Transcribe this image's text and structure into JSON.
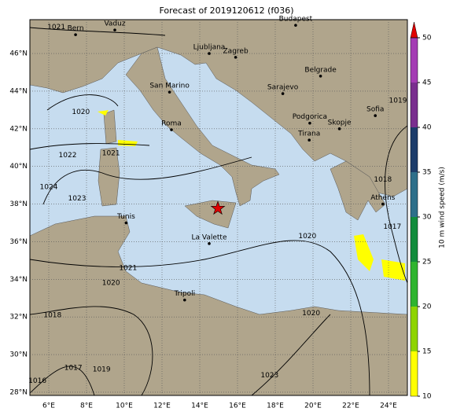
{
  "title": "Forecast of 2019120612 (f036)",
  "map": {
    "lonlim": [
      5,
      25
    ],
    "latlim": [
      27.83,
      47.8
    ],
    "lonticks": [
      {
        "value": 6,
        "label": "6°E"
      },
      {
        "value": 8,
        "label": "8°E"
      },
      {
        "value": 10,
        "label": "10°E"
      },
      {
        "value": 12,
        "label": "12°E"
      },
      {
        "value": 14,
        "label": "14°E"
      },
      {
        "value": 16,
        "label": "16°E"
      },
      {
        "value": 18,
        "label": "18°E"
      },
      {
        "value": 20,
        "label": "20°E"
      },
      {
        "value": 22,
        "label": "22°E"
      },
      {
        "value": 24,
        "label": "24°E"
      }
    ],
    "latticks": [
      {
        "value": 28,
        "label": "28°N"
      },
      {
        "value": 30,
        "label": "30°N"
      },
      {
        "value": 32,
        "label": "32°N"
      },
      {
        "value": 34,
        "label": "34°N"
      },
      {
        "value": 36,
        "label": "36°N"
      },
      {
        "value": 38,
        "label": "38°N"
      },
      {
        "value": 40,
        "label": "40°N"
      },
      {
        "value": 42,
        "label": "42°N"
      },
      {
        "value": 44,
        "label": "44°N"
      },
      {
        "value": 46,
        "label": "46°N"
      }
    ],
    "grid": true,
    "cities": [
      {
        "name": "Bern",
        "lon": 7.42,
        "lat": 47.0
      },
      {
        "name": "Vaduz",
        "lon": 9.5,
        "lat": 47.25
      },
      {
        "name": "Budapest",
        "lon": 19.08,
        "lat": 47.5
      },
      {
        "name": "Ljubljana",
        "lon": 14.5,
        "lat": 46.0
      },
      {
        "name": "Zagreb",
        "lon": 15.9,
        "lat": 45.8
      },
      {
        "name": "Belgrade",
        "lon": 20.4,
        "lat": 44.8
      },
      {
        "name": "San Marino",
        "lon": 12.4,
        "lat": 43.95
      },
      {
        "name": "Sarajevo",
        "lon": 18.4,
        "lat": 43.87
      },
      {
        "name": "Podgorica",
        "lon": 19.83,
        "lat": 42.3
      },
      {
        "name": "Sofia",
        "lon": 23.3,
        "lat": 42.7
      },
      {
        "name": "Skopje",
        "lon": 21.4,
        "lat": 42.0
      },
      {
        "name": "Tirana",
        "lon": 19.8,
        "lat": 41.4
      },
      {
        "name": "Roma",
        "lon": 12.5,
        "lat": 41.95
      },
      {
        "name": "Tunis",
        "lon": 10.1,
        "lat": 37.0
      },
      {
        "name": "Athens",
        "lon": 23.7,
        "lat": 38.0
      },
      {
        "name": "La Valette",
        "lon": 14.5,
        "lat": 35.9
      },
      {
        "name": "Tripoli",
        "lon": 13.2,
        "lat": 32.9
      }
    ],
    "marker": {
      "lon": 14.96,
      "lat": 37.77,
      "color": "#e00000"
    },
    "contour_labels": [
      {
        "value": 1021,
        "lon": 6.4,
        "lat": 47.4
      },
      {
        "value": 1020,
        "lon": 7.7,
        "lat": 42.9
      },
      {
        "value": 1022,
        "lon": 7.0,
        "lat": 40.6
      },
      {
        "value": 1021,
        "lon": 9.3,
        "lat": 40.7
      },
      {
        "value": 1024,
        "lon": 6.0,
        "lat": 38.9
      },
      {
        "value": 1023,
        "lon": 7.5,
        "lat": 38.3
      },
      {
        "value": 1020,
        "lon": 19.7,
        "lat": 36.3
      },
      {
        "value": 1021,
        "lon": 10.2,
        "lat": 34.6
      },
      {
        "value": 1020,
        "lon": 9.3,
        "lat": 33.8
      },
      {
        "value": 1018,
        "lon": 6.2,
        "lat": 32.1
      },
      {
        "value": 1017,
        "lon": 7.3,
        "lat": 29.3
      },
      {
        "value": 1019,
        "lon": 8.8,
        "lat": 29.2
      },
      {
        "value": 1016,
        "lon": 5.4,
        "lat": 28.6
      },
      {
        "value": 1020,
        "lon": 19.9,
        "lat": 32.2
      },
      {
        "value": 1023,
        "lon": 17.7,
        "lat": 28.9
      },
      {
        "value": 1017,
        "lon": 24.2,
        "lat": 36.8
      },
      {
        "value": 1018,
        "lon": 23.7,
        "lat": 39.3
      },
      {
        "value": 1019,
        "lon": 24.5,
        "lat": 43.5
      }
    ]
  },
  "colorbar": {
    "label": "10 m wind speed (m/s)",
    "lim": [
      10,
      50
    ],
    "ticks": [
      10,
      15,
      20,
      25,
      30,
      35,
      40,
      45,
      50
    ],
    "colors": [
      "#ffff00",
      "#8fd400",
      "#2fb42f",
      "#128c3c",
      "#2e6f8a",
      "#1c3c6a",
      "#7a2f8f",
      "#a43cb4"
    ],
    "extend_color": "#e00000"
  }
}
